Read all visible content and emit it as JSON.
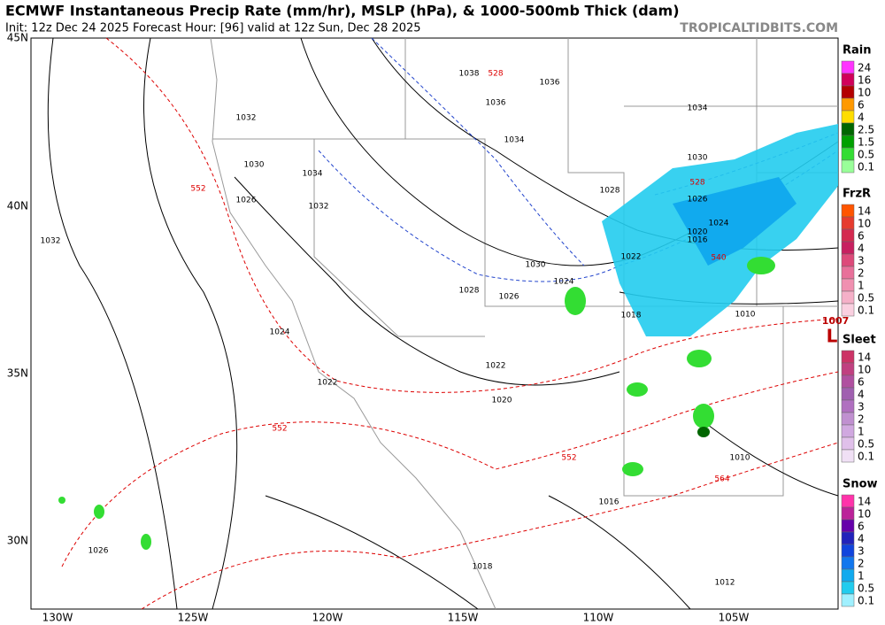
{
  "header": {
    "title": "ECMWF Instantaneous Precip Rate (mm/hr), MSLP (hPa), & 1000-500mb Thick (dam)",
    "subtitle": "Init: 12z Dec 24 2025   Forecast Hour: [96]   valid at 12z Sun, Dec 28 2025",
    "source": "TROPICALTIDBITS.COM"
  },
  "map": {
    "lat_labels": [
      "45N",
      "40N",
      "35N",
      "30N"
    ],
    "lon_labels": [
      "130W",
      "125W",
      "120W",
      "115W",
      "110W",
      "105W"
    ],
    "isobar_labels": [
      "1038",
      "1036",
      "1036",
      "1034",
      "1032",
      "1030",
      "1034",
      "1032",
      "1026",
      "1032",
      "1034",
      "1030",
      "1028",
      "1026",
      "1024",
      "1020",
      "1016",
      "1022",
      "1030",
      "1028",
      "1026",
      "1024",
      "1018",
      "1010",
      "1024",
      "1022",
      "1022",
      "1020",
      "1016",
      "1018",
      "1012",
      "1010",
      "1026"
    ],
    "thickness_labels": [
      "552",
      "528",
      "552",
      "552",
      "540",
      "528",
      "564"
    ],
    "low": {
      "symbol": "L",
      "pressure": "1007"
    }
  },
  "legend": [
    {
      "title": "Rain",
      "labels": [
        "24",
        "16",
        "10",
        "6",
        "4",
        "2.5",
        "1.5",
        "0.5",
        "0.1"
      ],
      "colors": [
        "#ff33ff",
        "#d1005a",
        "#b30000",
        "#ff9900",
        "#ffdd00",
        "#006600",
        "#00a000",
        "#33dd33",
        "#99ff99"
      ]
    },
    {
      "title": "FrzR",
      "labels": [
        "14",
        "10",
        "6",
        "4",
        "3",
        "2",
        "1",
        "0.5",
        "0.1"
      ],
      "colors": [
        "#ff5500",
        "#e63b2e",
        "#d42a50",
        "#c72060",
        "#dd4a7a",
        "#e8709a",
        "#f090b0",
        "#f5b0c8",
        "#fad0e0"
      ]
    },
    {
      "title": "Sleet",
      "labels": [
        "14",
        "10",
        "6",
        "4",
        "3",
        "2",
        "1",
        "0.5",
        "0.1"
      ],
      "colors": [
        "#cc3366",
        "#c04080",
        "#b050a0",
        "#a060b0",
        "#b070c0",
        "#c090d0",
        "#d0a8e0",
        "#e0c0ea",
        "#f0e0f5"
      ]
    },
    {
      "title": "Snow",
      "labels": [
        "14",
        "10",
        "6",
        "4",
        "3",
        "2",
        "1",
        "0.5",
        "0.1"
      ],
      "colors": [
        "#ff33aa",
        "#bb2299",
        "#6600aa",
        "#2222bb",
        "#1144dd",
        "#1177ee",
        "#11aaee",
        "#22ccee",
        "#a0f0ff"
      ]
    }
  ]
}
